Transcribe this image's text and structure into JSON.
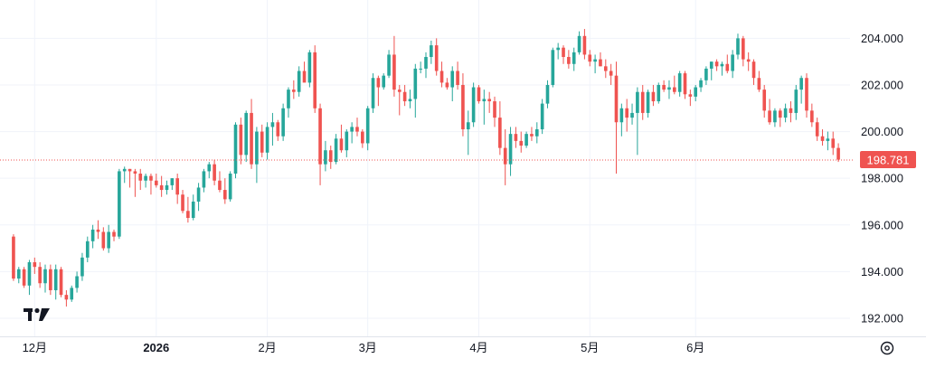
{
  "chart_data": {
    "type": "candlestick",
    "y_axis": {
      "range": [
        191.3,
        205.1
      ],
      "ticks": [
        204,
        202,
        200,
        198,
        196,
        194,
        192
      ],
      "tick_labels": [
        "204.000",
        "202.000",
        "200.000",
        "198.000",
        "196.000",
        "194.000",
        "192.000"
      ]
    },
    "x_axis": {
      "labels": [
        {
          "text": "12月",
          "index": 4,
          "bold": false
        },
        {
          "text": "2026",
          "index": 27,
          "bold": true
        },
        {
          "text": "2月",
          "index": 48,
          "bold": false
        },
        {
          "text": "3月",
          "index": 67,
          "bold": false
        },
        {
          "text": "4月",
          "index": 88,
          "bold": false
        },
        {
          "text": "5月",
          "index": 109,
          "bold": false
        },
        {
          "text": "6月",
          "index": 129,
          "bold": false
        }
      ]
    },
    "last_price": {
      "value": 198.781,
      "label": "198.781"
    },
    "colors": {
      "up": "#26a69a",
      "down": "#ef5350",
      "grid": "#f0f3fa"
    },
    "grid": true,
    "candles": [
      [
        195.5,
        195.6,
        193.6,
        193.7
      ],
      [
        193.7,
        194.2,
        193.5,
        194.1
      ],
      [
        194.1,
        194.2,
        193.3,
        193.4
      ],
      [
        193.4,
        194.5,
        193.0,
        194.4
      ],
      [
        194.4,
        194.6,
        193.9,
        194.2
      ],
      [
        194.2,
        194.4,
        193.3,
        193.5
      ],
      [
        193.5,
        194.3,
        193.1,
        194.1
      ],
      [
        194.1,
        194.3,
        193.0,
        193.2
      ],
      [
        193.2,
        194.3,
        192.8,
        194.1
      ],
      [
        194.1,
        194.2,
        192.9,
        193.0
      ],
      [
        193.0,
        193.2,
        192.5,
        192.8
      ],
      [
        192.8,
        193.4,
        192.7,
        193.3
      ],
      [
        193.3,
        194.0,
        193.1,
        193.8
      ],
      [
        193.8,
        194.8,
        193.6,
        194.6
      ],
      [
        194.6,
        195.5,
        194.4,
        195.3
      ],
      [
        195.3,
        196.0,
        195.0,
        195.8
      ],
      [
        195.8,
        196.2,
        195.4,
        195.7
      ],
      [
        195.7,
        195.9,
        194.9,
        195.0
      ],
      [
        195.0,
        196.0,
        194.8,
        195.7
      ],
      [
        195.7,
        195.8,
        195.3,
        195.5
      ],
      [
        195.5,
        198.4,
        195.4,
        198.3
      ],
      [
        198.3,
        198.5,
        197.8,
        198.4
      ],
      [
        198.4,
        198.4,
        197.6,
        198.3
      ],
      [
        198.3,
        198.4,
        197.2,
        198.2
      ],
      [
        198.2,
        198.4,
        197.5,
        197.9
      ],
      [
        197.9,
        198.2,
        197.6,
        198.1
      ],
      [
        198.1,
        198.2,
        197.3,
        197.9
      ],
      [
        197.9,
        198.2,
        197.6,
        197.7
      ],
      [
        197.7,
        198.1,
        197.2,
        197.5
      ],
      [
        197.5,
        197.9,
        197.3,
        197.7
      ],
      [
        197.7,
        198.0,
        197.5,
        198.0
      ],
      [
        198.0,
        198.2,
        196.9,
        197.3
      ],
      [
        197.3,
        197.5,
        196.5,
        196.6
      ],
      [
        196.6,
        197.2,
        196.1,
        196.3
      ],
      [
        196.3,
        197.3,
        196.2,
        197.0
      ],
      [
        197.0,
        197.8,
        196.6,
        197.6
      ],
      [
        197.6,
        198.4,
        197.4,
        198.3
      ],
      [
        198.3,
        198.7,
        198.0,
        198.6
      ],
      [
        198.6,
        198.8,
        197.7,
        197.9
      ],
      [
        197.9,
        198.3,
        197.4,
        197.5
      ],
      [
        197.5,
        198.0,
        196.9,
        197.1
      ],
      [
        197.1,
        198.3,
        197.0,
        198.2
      ],
      [
        198.2,
        200.4,
        198.0,
        200.3
      ],
      [
        200.3,
        200.6,
        198.6,
        199.0
      ],
      [
        199.0,
        200.9,
        198.7,
        200.8
      ],
      [
        200.8,
        201.4,
        198.4,
        198.6
      ],
      [
        198.6,
        200.2,
        197.8,
        200.0
      ],
      [
        200.0,
        200.3,
        198.9,
        199.1
      ],
      [
        199.1,
        200.4,
        198.8,
        200.2
      ],
      [
        200.2,
        200.8,
        199.4,
        200.4
      ],
      [
        200.4,
        200.5,
        199.6,
        199.8
      ],
      [
        199.8,
        201.2,
        199.6,
        201.0
      ],
      [
        201.0,
        201.9,
        200.6,
        201.8
      ],
      [
        201.8,
        202.2,
        201.4,
        201.7
      ],
      [
        201.7,
        202.8,
        201.5,
        202.6
      ],
      [
        202.6,
        203.0,
        202.2,
        202.1
      ],
      [
        202.1,
        203.5,
        201.9,
        203.4
      ],
      [
        203.4,
        203.7,
        200.8,
        201.0
      ],
      [
        201.0,
        201.2,
        197.7,
        198.6
      ],
      [
        198.6,
        199.6,
        198.3,
        199.2
      ],
      [
        199.2,
        199.4,
        198.4,
        198.7
      ],
      [
        198.7,
        199.9,
        198.6,
        199.7
      ],
      [
        199.7,
        200.3,
        199.1,
        199.2
      ],
      [
        199.2,
        200.1,
        198.9,
        200.0
      ],
      [
        200.0,
        200.4,
        199.5,
        200.2
      ],
      [
        200.2,
        200.6,
        199.8,
        200.0
      ],
      [
        200.0,
        200.1,
        199.3,
        199.5
      ],
      [
        199.5,
        201.1,
        199.2,
        201.0
      ],
      [
        201.0,
        202.5,
        200.8,
        202.3
      ],
      [
        202.3,
        202.4,
        201.1,
        201.9
      ],
      [
        201.9,
        202.5,
        201.8,
        202.4
      ],
      [
        202.4,
        203.5,
        202.3,
        203.3
      ],
      [
        203.3,
        204.1,
        201.5,
        201.8
      ],
      [
        201.8,
        202.0,
        200.7,
        201.7
      ],
      [
        201.7,
        202.0,
        201.1,
        201.3
      ],
      [
        201.3,
        201.8,
        201.0,
        201.4
      ],
      [
        201.4,
        202.9,
        200.6,
        202.7
      ],
      [
        202.7,
        203.0,
        202.5,
        202.7
      ],
      [
        202.7,
        203.4,
        202.3,
        203.2
      ],
      [
        203.2,
        203.9,
        202.9,
        203.7
      ],
      [
        203.7,
        204.0,
        202.4,
        202.6
      ],
      [
        202.6,
        203.0,
        201.9,
        202.1
      ],
      [
        202.1,
        202.3,
        201.8,
        201.9
      ],
      [
        201.9,
        202.8,
        201.3,
        202.6
      ],
      [
        202.6,
        203.0,
        201.8,
        202.0
      ],
      [
        202.0,
        202.5,
        199.8,
        200.1
      ],
      [
        200.1,
        200.9,
        199.0,
        200.4
      ],
      [
        200.4,
        202.1,
        200.2,
        201.9
      ],
      [
        201.9,
        202.0,
        201.2,
        201.3
      ],
      [
        201.3,
        201.8,
        200.3,
        201.4
      ],
      [
        201.4,
        201.7,
        200.8,
        201.3
      ],
      [
        201.3,
        201.5,
        200.2,
        200.6
      ],
      [
        200.6,
        201.3,
        199.0,
        199.3
      ],
      [
        199.3,
        200.1,
        197.7,
        198.6
      ],
      [
        198.6,
        200.2,
        198.1,
        199.9
      ],
      [
        199.9,
        200.2,
        199.3,
        199.6
      ],
      [
        199.6,
        200.0,
        199.1,
        199.4
      ],
      [
        199.4,
        200.0,
        199.3,
        199.9
      ],
      [
        199.9,
        200.2,
        199.6,
        199.8
      ],
      [
        199.8,
        200.4,
        199.5,
        200.1
      ],
      [
        200.1,
        201.4,
        199.9,
        201.2
      ],
      [
        201.2,
        202.2,
        201.0,
        202.0
      ],
      [
        202.0,
        203.6,
        201.9,
        203.5
      ],
      [
        203.5,
        203.8,
        203.1,
        203.6
      ],
      [
        203.6,
        203.7,
        202.9,
        203.2
      ],
      [
        203.2,
        203.5,
        202.7,
        202.9
      ],
      [
        202.9,
        203.6,
        202.6,
        203.4
      ],
      [
        203.4,
        204.3,
        203.3,
        204.1
      ],
      [
        204.1,
        204.4,
        203.1,
        203.3
      ],
      [
        203.3,
        203.5,
        202.8,
        203.0
      ],
      [
        203.0,
        203.3,
        202.5,
        203.1
      ],
      [
        203.1,
        203.4,
        202.8,
        202.8
      ],
      [
        202.8,
        203.1,
        202.3,
        202.6
      ],
      [
        202.6,
        202.9,
        202.0,
        202.4
      ],
      [
        202.4,
        203.0,
        198.2,
        200.4
      ],
      [
        200.4,
        201.2,
        199.8,
        201.0
      ],
      [
        201.0,
        201.4,
        200.0,
        200.6
      ],
      [
        200.6,
        201.2,
        200.3,
        200.8
      ],
      [
        200.8,
        201.9,
        199.0,
        201.7
      ],
      [
        201.7,
        202.0,
        200.5,
        200.8
      ],
      [
        200.8,
        201.8,
        200.6,
        201.7
      ],
      [
        201.7,
        202.0,
        201.1,
        201.3
      ],
      [
        201.3,
        202.1,
        201.2,
        202.0
      ],
      [
        202.0,
        202.2,
        201.7,
        201.8
      ],
      [
        201.8,
        202.2,
        201.4,
        201.9
      ],
      [
        201.9,
        202.4,
        201.6,
        201.7
      ],
      [
        201.7,
        202.6,
        201.5,
        202.5
      ],
      [
        202.5,
        202.6,
        201.4,
        201.6
      ],
      [
        201.6,
        201.8,
        201.1,
        201.5
      ],
      [
        201.5,
        202.0,
        201.3,
        201.9
      ],
      [
        201.9,
        202.3,
        201.7,
        202.2
      ],
      [
        202.2,
        202.8,
        202.0,
        202.7
      ],
      [
        202.7,
        203.0,
        202.2,
        203.0
      ],
      [
        203.0,
        203.1,
        202.6,
        202.8
      ],
      [
        202.8,
        203.0,
        202.4,
        202.9
      ],
      [
        202.9,
        203.3,
        202.5,
        202.6
      ],
      [
        202.6,
        203.5,
        202.3,
        203.3
      ],
      [
        203.3,
        204.2,
        203.1,
        204.0
      ],
      [
        204.0,
        204.1,
        202.8,
        203.1
      ],
      [
        203.1,
        203.4,
        202.6,
        203.0
      ],
      [
        203.0,
        203.1,
        202.0,
        202.3
      ],
      [
        202.3,
        202.6,
        201.7,
        201.8
      ],
      [
        201.8,
        202.0,
        200.6,
        200.9
      ],
      [
        200.9,
        201.4,
        200.3,
        200.4
      ],
      [
        200.4,
        201.0,
        200.2,
        200.9
      ],
      [
        200.9,
        201.0,
        200.2,
        200.6
      ],
      [
        200.6,
        201.2,
        200.4,
        201.0
      ],
      [
        201.0,
        201.3,
        200.4,
        200.8
      ],
      [
        200.8,
        202.0,
        200.5,
        201.8
      ],
      [
        201.8,
        202.4,
        201.2,
        202.3
      ],
      [
        202.3,
        202.5,
        200.6,
        200.9
      ],
      [
        200.9,
        201.2,
        200.2,
        200.4
      ],
      [
        200.4,
        200.6,
        199.6,
        199.8
      ],
      [
        199.8,
        200.1,
        199.4,
        199.6
      ],
      [
        199.6,
        200.0,
        199.2,
        199.7
      ],
      [
        199.7,
        200.0,
        199.0,
        199.3
      ],
      [
        199.3,
        199.5,
        198.7,
        198.8
      ]
    ]
  }
}
